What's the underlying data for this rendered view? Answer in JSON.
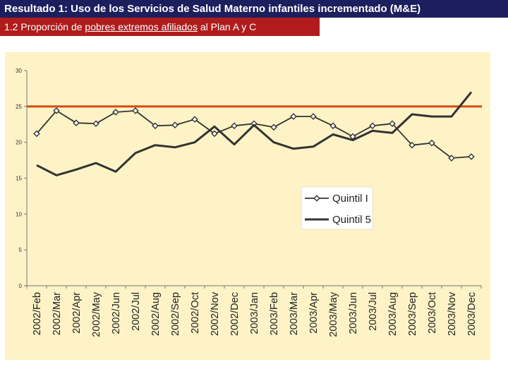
{
  "header": {
    "title": "Resultado 1: Uso de los Servicios de Salud Materno infantiles incrementado (M&E)",
    "subtitle_prefix": "1.2 Proporción de",
    "subtitle_underlined": "pobres extremos afiliados",
    "subtitle_suffix": "al Plan A y C"
  },
  "colors": {
    "title_bg": "#1b1f5e",
    "subtitle_bg": "#b01c1c",
    "panel_bg": "#fdf3c6",
    "reference_line": "#d44a12",
    "series_line": "#333333"
  },
  "chart_data": {
    "type": "line",
    "categories": [
      "2002/Feb",
      "2002/Mar",
      "2002/Apr",
      "2002/May",
      "2002/Jun",
      "2002/Jul",
      "2002/Aug",
      "2002/Sep",
      "2002/Oct",
      "2002/Nov",
      "2002/Dec",
      "2003/Jan",
      "2003/Feb",
      "2003/Mar",
      "2003/Apr",
      "2003/May",
      "2003/Jun",
      "2003/Jul",
      "2003/Aug",
      "2003/Sep",
      "2003/Oct",
      "2003/Nov",
      "2003/Dec"
    ],
    "series": [
      {
        "name": "Quintil I",
        "marker": "diamond",
        "values": [
          21.2,
          24.4,
          22.7,
          22.6,
          24.2,
          24.4,
          22.3,
          22.4,
          23.2,
          21.2,
          22.3,
          22.6,
          22.1,
          23.6,
          23.6,
          22.3,
          20.8,
          22.3,
          22.6,
          19.6,
          19.9,
          17.8,
          18.0
        ]
      },
      {
        "name": "Quintil 5",
        "marker": "none",
        "values": [
          16.8,
          15.4,
          16.2,
          17.1,
          15.9,
          18.5,
          19.6,
          19.3,
          20.0,
          22.2,
          19.7,
          22.4,
          20.0,
          19.1,
          19.4,
          21.1,
          20.3,
          21.6,
          21.3,
          23.9,
          23.6,
          23.6,
          27.0
        ]
      }
    ],
    "reference_line": {
      "value": 25
    },
    "ylim": [
      0,
      30
    ],
    "yticks": [
      0,
      5,
      10,
      15,
      20,
      25,
      30
    ],
    "title": "",
    "xlabel": "",
    "ylabel": "",
    "grid": false,
    "legend_position": "center-right"
  }
}
